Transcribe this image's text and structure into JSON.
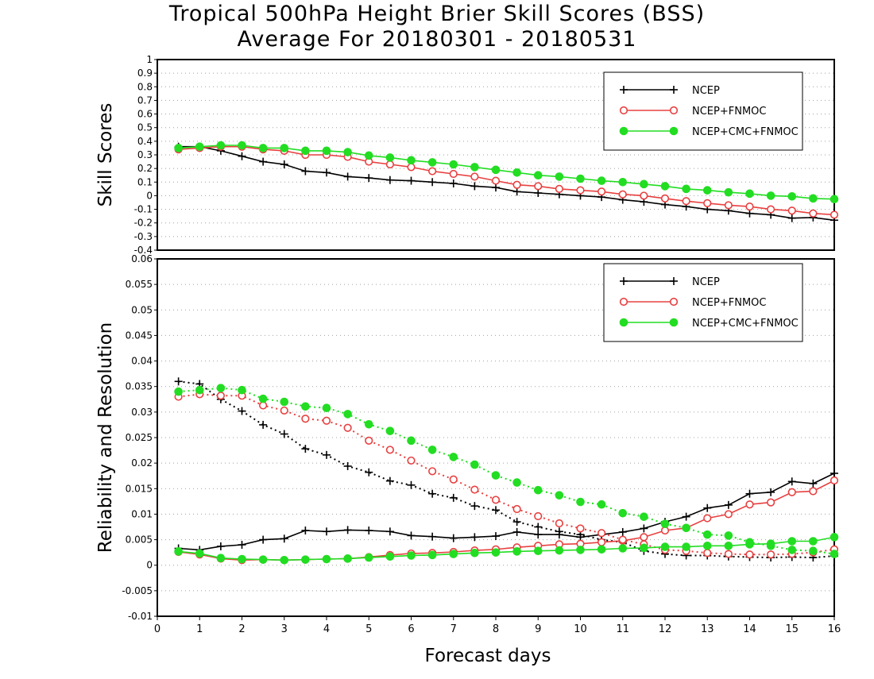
{
  "figure": {
    "title": "Tropical 500hPa Height Brier Skill Scores (BSS)",
    "subtitle": "Average For 20180301 - 20180531",
    "xlabel": "Forecast days",
    "xticks": [
      "0",
      "1",
      "2",
      "3",
      "4",
      "5",
      "6",
      "7",
      "8",
      "9",
      "10",
      "11",
      "12",
      "13",
      "14",
      "15",
      "16"
    ],
    "colors": {
      "NCEP": "#000000",
      "NCEP+FNMOC": "#e84040",
      "NCEP+CMC+FNMOC": "#22dd22"
    }
  },
  "chart_data": [
    {
      "type": "line",
      "ylabel": "Skill Scores",
      "xlim": [
        0,
        16
      ],
      "ylim": [
        -0.4,
        1
      ],
      "yticks": [
        "-0.4",
        "-0.3",
        "-0.2",
        "-0.1",
        "0",
        "0.1",
        "0.2",
        "0.3",
        "0.4",
        "0.5",
        "0.6",
        "0.7",
        "0.8",
        "0.9",
        "1"
      ],
      "grid": true,
      "legend_position": "top-right",
      "x": [
        0.5,
        1,
        1.5,
        2,
        2.5,
        3,
        3.5,
        4,
        4.5,
        5,
        5.5,
        6,
        6.5,
        7,
        7.5,
        8,
        8.5,
        9,
        9.5,
        10,
        10.5,
        11,
        11.5,
        12,
        12.5,
        13,
        13.5,
        14,
        14.5,
        15,
        15.5,
        16
      ],
      "series": [
        {
          "name": "NCEP",
          "marker": "plus",
          "style": "solid",
          "values": [
            0.36,
            0.36,
            0.33,
            0.29,
            0.25,
            0.23,
            0.18,
            0.17,
            0.14,
            0.13,
            0.115,
            0.11,
            0.1,
            0.09,
            0.07,
            0.06,
            0.03,
            0.02,
            0.01,
            0.0,
            -0.01,
            -0.03,
            -0.045,
            -0.065,
            -0.08,
            -0.1,
            -0.11,
            -0.13,
            -0.14,
            -0.165,
            -0.16,
            -0.18
          ]
        },
        {
          "name": "NCEP+FNMOC",
          "marker": "open-circle",
          "style": "solid",
          "values": [
            0.34,
            0.35,
            0.36,
            0.36,
            0.34,
            0.33,
            0.3,
            0.3,
            0.285,
            0.25,
            0.23,
            0.21,
            0.18,
            0.16,
            0.14,
            0.11,
            0.08,
            0.07,
            0.05,
            0.04,
            0.03,
            0.01,
            0.0,
            -0.02,
            -0.04,
            -0.055,
            -0.07,
            -0.08,
            -0.1,
            -0.11,
            -0.13,
            -0.14
          ]
        },
        {
          "name": "NCEP+CMC+FNMOC",
          "marker": "filled-circle",
          "style": "solid",
          "values": [
            0.35,
            0.36,
            0.37,
            0.37,
            0.35,
            0.35,
            0.33,
            0.33,
            0.32,
            0.295,
            0.28,
            0.26,
            0.245,
            0.23,
            0.21,
            0.19,
            0.17,
            0.15,
            0.14,
            0.125,
            0.11,
            0.1,
            0.085,
            0.07,
            0.05,
            0.04,
            0.025,
            0.015,
            0.0,
            -0.005,
            -0.02,
            -0.025
          ]
        }
      ]
    },
    {
      "type": "line",
      "ylabel": "Reliability and Resolution",
      "xlim": [
        0,
        16
      ],
      "ylim": [
        -0.01,
        0.06
      ],
      "yticks": [
        "-0.01",
        "-0.005",
        "0",
        "0.005",
        "0.01",
        "0.015",
        "0.02",
        "0.025",
        "0.03",
        "0.035",
        "0.04",
        "0.045",
        "0.05",
        "0.055",
        "0.06"
      ],
      "grid": true,
      "legend_position": "top-right",
      "x": [
        0.5,
        1,
        1.5,
        2,
        2.5,
        3,
        3.5,
        4,
        4.5,
        5,
        5.5,
        6,
        6.5,
        7,
        7.5,
        8,
        8.5,
        9,
        9.5,
        10,
        10.5,
        11,
        11.5,
        12,
        12.5,
        13,
        13.5,
        14,
        14.5,
        15,
        15.5,
        16
      ],
      "series": [
        {
          "name": "NCEP",
          "metric": "resolution",
          "marker": "plus",
          "style": "solid",
          "values": [
            0.0033,
            0.003,
            0.0037,
            0.004,
            0.005,
            0.0052,
            0.0068,
            0.0066,
            0.0069,
            0.0068,
            0.0066,
            0.0058,
            0.0056,
            0.0053,
            0.0055,
            0.0057,
            0.0065,
            0.006,
            0.006,
            0.0055,
            0.006,
            0.0065,
            0.0072,
            0.0085,
            0.0095,
            0.0112,
            0.0118,
            0.014,
            0.0143,
            0.0164,
            0.016,
            0.018
          ]
        },
        {
          "name": "NCEP",
          "metric": "reliability",
          "marker": "plus",
          "style": "dotted",
          "values": [
            0.036,
            0.0355,
            0.0325,
            0.0302,
            0.0275,
            0.0257,
            0.0228,
            0.0216,
            0.0194,
            0.0182,
            0.0165,
            0.0157,
            0.014,
            0.0132,
            0.0116,
            0.0108,
            0.0085,
            0.0075,
            0.0066,
            0.006,
            0.005,
            0.0045,
            0.0028,
            0.0022,
            0.0019,
            0.0019,
            0.0017,
            0.0016,
            0.0015,
            0.0016,
            0.0015,
            0.0018
          ]
        },
        {
          "name": "NCEP+FNMOC",
          "metric": "resolution",
          "marker": "open-circle",
          "style": "solid",
          "values": [
            0.0026,
            0.0021,
            0.0013,
            0.001,
            0.0011,
            0.001,
            0.0011,
            0.0012,
            0.0013,
            0.0016,
            0.002,
            0.0023,
            0.0024,
            0.0026,
            0.0029,
            0.0031,
            0.0035,
            0.0038,
            0.0041,
            0.0042,
            0.0045,
            0.0048,
            0.0055,
            0.0068,
            0.0073,
            0.0092,
            0.01,
            0.0119,
            0.0123,
            0.0143,
            0.0145,
            0.0166
          ]
        },
        {
          "name": "NCEP+FNMOC",
          "metric": "reliability",
          "marker": "open-circle",
          "style": "dotted",
          "values": [
            0.033,
            0.0335,
            0.0332,
            0.0332,
            0.0313,
            0.0303,
            0.0287,
            0.0283,
            0.0269,
            0.0244,
            0.0226,
            0.0205,
            0.0184,
            0.0168,
            0.0148,
            0.0128,
            0.011,
            0.0096,
            0.0082,
            0.0072,
            0.0063,
            0.005,
            0.0041,
            0.003,
            0.0028,
            0.0024,
            0.0022,
            0.0021,
            0.0021,
            0.0022,
            0.0025,
            0.0031
          ]
        },
        {
          "name": "NCEP+CMC+FNMOC",
          "metric": "resolution",
          "marker": "filled-circle",
          "style": "solid",
          "values": [
            0.0027,
            0.0023,
            0.0014,
            0.0012,
            0.0011,
            0.001,
            0.0011,
            0.0012,
            0.0013,
            0.0015,
            0.0017,
            0.0019,
            0.002,
            0.0022,
            0.0024,
            0.0025,
            0.0027,
            0.0028,
            0.0029,
            0.003,
            0.0031,
            0.0033,
            0.0034,
            0.0036,
            0.0036,
            0.0038,
            0.0038,
            0.0041,
            0.0042,
            0.0047,
            0.0047,
            0.0055
          ]
        },
        {
          "name": "NCEP+CMC+FNMOC",
          "metric": "reliability",
          "marker": "filled-circle",
          "style": "dotted",
          "values": [
            0.034,
            0.0343,
            0.0347,
            0.0343,
            0.0326,
            0.032,
            0.0311,
            0.0308,
            0.0296,
            0.0276,
            0.0263,
            0.0244,
            0.0226,
            0.0212,
            0.0197,
            0.0176,
            0.0162,
            0.0147,
            0.0137,
            0.0124,
            0.0119,
            0.0102,
            0.0095,
            0.0081,
            0.0073,
            0.006,
            0.0058,
            0.0045,
            0.0038,
            0.003,
            0.0028,
            0.0022
          ]
        }
      ]
    }
  ]
}
